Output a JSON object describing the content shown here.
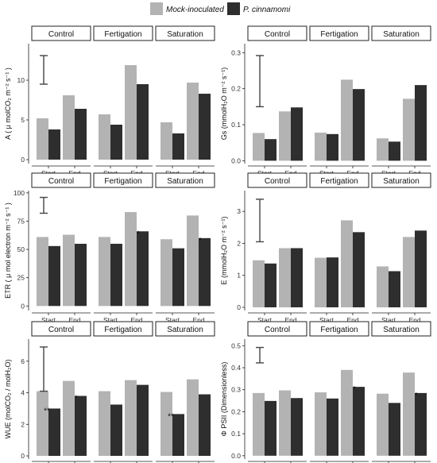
{
  "legend": {
    "items": [
      {
        "label": "Mock-inoculated",
        "color": "#b3b3b3"
      },
      {
        "label": "P. cinnamomi",
        "color": "#2e2e2e"
      }
    ]
  },
  "chart_data": [
    {
      "type": "bar",
      "ylabel": "A ( μ molCO₂ m⁻² s⁻¹ )",
      "ylim": [
        -0.5,
        14.6
      ],
      "yticks": [
        0,
        5,
        10
      ],
      "facets": [
        "Control",
        "Fertigation",
        "Saturation"
      ],
      "categories": [
        "Start",
        "End"
      ],
      "series": [
        {
          "name": "Mock-inoculated",
          "values": [
            [
              5.2,
              8.1
            ],
            [
              5.7,
              11.9
            ],
            [
              4.7,
              9.7
            ]
          ]
        },
        {
          "name": "P. cinnamomi",
          "values": [
            [
              3.8,
              6.4
            ],
            [
              4.4,
              9.5
            ],
            [
              3.3,
              8.3
            ]
          ]
        }
      ],
      "errorbar": [
        9.5,
        13.1
      ],
      "annotations": []
    },
    {
      "type": "bar",
      "ylabel": "Gs (mmolH₂O m⁻² s⁻¹)",
      "ylim": [
        -0.008,
        0.325
      ],
      "yticks": [
        0.0,
        0.1,
        0.2,
        0.3
      ],
      "facets": [
        "Control",
        "Fertigation",
        "Saturation"
      ],
      "categories": [
        "Start",
        "End"
      ],
      "series": [
        {
          "name": "Mock-inoculated",
          "values": [
            [
              0.077,
              0.137
            ],
            [
              0.078,
              0.225
            ],
            [
              0.062,
              0.172
            ]
          ]
        },
        {
          "name": "P. cinnamomi",
          "values": [
            [
              0.06,
              0.148
            ],
            [
              0.074,
              0.199
            ],
            [
              0.053,
              0.21
            ]
          ]
        }
      ],
      "errorbar": [
        0.15,
        0.292
      ],
      "annotations": []
    },
    {
      "type": "bar",
      "ylabel": "ETR ( μ mol electron m⁻² s⁻¹ )",
      "ylim": [
        -4,
        102
      ],
      "yticks": [
        0,
        25,
        50,
        75,
        100
      ],
      "facets": [
        "Control",
        "Fertigation",
        "Saturation"
      ],
      "categories": [
        "Start",
        "End"
      ],
      "series": [
        {
          "name": "Mock-inoculated",
          "values": [
            [
              61,
              63
            ],
            [
              61,
              83
            ],
            [
              59,
              80
            ]
          ]
        },
        {
          "name": "P. cinnamomi",
          "values": [
            [
              53,
              55
            ],
            [
              55,
              66
            ],
            [
              51,
              60
            ]
          ]
        }
      ],
      "errorbar": [
        82,
        96
      ],
      "annotations": [
        {
          "facet": 1,
          "category": 1,
          "text": "*"
        },
        {
          "facet": 2,
          "category": 1,
          "text": "*"
        }
      ]
    },
    {
      "type": "bar",
      "ylabel": "E (mmolH₂O m⁻² s⁻¹)",
      "ylim": [
        -0.1,
        3.65
      ],
      "yticks": [
        0,
        1,
        2,
        3
      ],
      "facets": [
        "Control",
        "Fertigation",
        "Saturation"
      ],
      "categories": [
        "Start",
        "End"
      ],
      "series": [
        {
          "name": "Mock-inoculated",
          "values": [
            [
              1.47,
              1.85
            ],
            [
              1.55,
              2.72
            ],
            [
              1.28,
              2.2
            ]
          ]
        },
        {
          "name": "P. cinnamomi",
          "values": [
            [
              1.37,
              1.85
            ],
            [
              1.56,
              2.35
            ],
            [
              1.13,
              2.4
            ]
          ]
        }
      ],
      "errorbar": [
        2.05,
        3.38
      ],
      "annotations": []
    },
    {
      "type": "bar",
      "ylabel": "WUE (molCO₂ / molH₂O)",
      "ylim": [
        -0.2,
        7.4
      ],
      "yticks": [
        0,
        2,
        4,
        6
      ],
      "facets": [
        "Control",
        "Fertigation",
        "Saturation"
      ],
      "categories": [
        "Start",
        "End"
      ],
      "series": [
        {
          "name": "Mock-inoculated",
          "values": [
            [
              4.1,
              4.75
            ],
            [
              4.1,
              4.8
            ],
            [
              4.05,
              4.85
            ]
          ]
        },
        {
          "name": "P. cinnamomi",
          "values": [
            [
              3.0,
              3.8
            ],
            [
              3.25,
              4.5
            ],
            [
              2.65,
              3.9
            ]
          ]
        }
      ],
      "errorbar": [
        4.1,
        6.9
      ],
      "annotations": [
        {
          "facet": 0,
          "category": 0,
          "text": "**"
        },
        {
          "facet": 0,
          "category": 1,
          "text": "*"
        },
        {
          "facet": 2,
          "category": 0,
          "text": "**"
        }
      ]
    },
    {
      "type": "bar",
      "ylabel": "Φ PSII (Dimensionless)",
      "ylim": [
        -0.015,
        0.53
      ],
      "yticks": [
        0.0,
        0.1,
        0.2,
        0.3,
        0.4,
        0.5
      ],
      "facets": [
        "Control",
        "Fertigation",
        "Saturation"
      ],
      "categories": [
        "Start",
        "End"
      ],
      "series": [
        {
          "name": "Mock-inoculated",
          "values": [
            [
              0.285,
              0.297
            ],
            [
              0.288,
              0.39
            ],
            [
              0.282,
              0.378
            ]
          ]
        },
        {
          "name": "P. cinnamomi",
          "values": [
            [
              0.249,
              0.262
            ],
            [
              0.26,
              0.313
            ],
            [
              0.24,
              0.285
            ]
          ]
        }
      ],
      "errorbar": [
        0.422,
        0.492
      ],
      "annotations": [
        {
          "facet": 1,
          "category": 1,
          "text": "*"
        },
        {
          "facet": 2,
          "category": 1,
          "text": "*"
        }
      ]
    }
  ]
}
